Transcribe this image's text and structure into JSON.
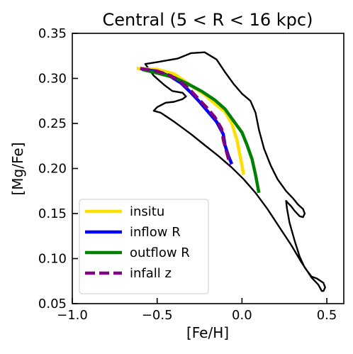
{
  "chart_data": {
    "type": "line",
    "title": "Central (5 < R < 16 kpc)",
    "xlabel": "[Fe/H]",
    "ylabel": "[Mg/Fe]",
    "xlim": [
      -1.0,
      0.6
    ],
    "ylim": [
      0.05,
      0.35
    ],
    "xticks": [
      -1.0,
      -0.5,
      0.0,
      0.5
    ],
    "xtick_labels": [
      "−1.0",
      "−0.5",
      "0.0",
      "0.5"
    ],
    "yticks": [
      0.05,
      0.1,
      0.15,
      0.2,
      0.25,
      0.3,
      0.35
    ],
    "ytick_labels": [
      "0.05",
      "0.10",
      "0.15",
      "0.20",
      "0.25",
      "0.30",
      "0.35"
    ],
    "grid": false,
    "legend_position": "lower-left",
    "contour": {
      "color": "#000000",
      "points": [
        [
          -0.57,
          0.316
        ],
        [
          -0.5,
          0.318
        ],
        [
          -0.38,
          0.322
        ],
        [
          -0.3,
          0.328
        ],
        [
          -0.22,
          0.329
        ],
        [
          -0.15,
          0.321
        ],
        [
          -0.1,
          0.307
        ],
        [
          -0.05,
          0.294
        ],
        [
          0.0,
          0.283
        ],
        [
          0.05,
          0.275
        ],
        [
          0.08,
          0.262
        ],
        [
          0.1,
          0.243
        ],
        [
          0.13,
          0.222
        ],
        [
          0.17,
          0.203
        ],
        [
          0.21,
          0.188
        ],
        [
          0.26,
          0.175
        ],
        [
          0.3,
          0.167
        ],
        [
          0.33,
          0.16
        ],
        [
          0.36,
          0.155
        ],
        [
          0.37,
          0.15
        ],
        [
          0.36,
          0.146
        ],
        [
          0.34,
          0.147
        ],
        [
          0.31,
          0.153
        ],
        [
          0.29,
          0.158
        ],
        [
          0.27,
          0.162
        ],
        [
          0.26,
          0.164
        ],
        [
          0.265,
          0.156
        ],
        [
          0.28,
          0.14
        ],
        [
          0.31,
          0.12
        ],
        [
          0.34,
          0.102
        ],
        [
          0.37,
          0.09
        ],
        [
          0.41,
          0.08
        ],
        [
          0.44,
          0.078
        ],
        [
          0.48,
          0.073
        ],
        [
          0.49,
          0.068
        ],
        [
          0.48,
          0.064
        ],
        [
          0.47,
          0.064
        ],
        [
          0.45,
          0.071
        ],
        [
          0.41,
          0.079
        ],
        [
          0.35,
          0.096
        ],
        [
          0.29,
          0.115
        ],
        [
          0.22,
          0.135
        ],
        [
          0.15,
          0.155
        ],
        [
          0.08,
          0.173
        ],
        [
          0.01,
          0.188
        ],
        [
          -0.06,
          0.201
        ],
        [
          -0.14,
          0.214
        ],
        [
          -0.22,
          0.226
        ],
        [
          -0.3,
          0.238
        ],
        [
          -0.4,
          0.252
        ],
        [
          -0.48,
          0.262
        ],
        [
          -0.52,
          0.264
        ],
        [
          -0.5,
          0.268
        ],
        [
          -0.45,
          0.273
        ],
        [
          -0.4,
          0.274
        ],
        [
          -0.35,
          0.277
        ],
        [
          -0.33,
          0.28
        ],
        [
          -0.35,
          0.284
        ],
        [
          -0.41,
          0.286
        ],
        [
          -0.46,
          0.293
        ],
        [
          -0.52,
          0.303
        ],
        [
          -0.57,
          0.316
        ]
      ]
    },
    "series": [
      {
        "name": "insitu",
        "color": "#ffdf00",
        "dash": "solid",
        "points": [
          [
            -0.62,
            0.311
          ],
          [
            -0.5,
            0.31
          ],
          [
            -0.4,
            0.305
          ],
          [
            -0.3,
            0.292
          ],
          [
            -0.22,
            0.282
          ],
          [
            -0.16,
            0.272
          ],
          [
            -0.1,
            0.263
          ],
          [
            -0.06,
            0.25
          ],
          [
            -0.03,
            0.232
          ],
          [
            -0.01,
            0.213
          ],
          [
            0.01,
            0.193
          ]
        ]
      },
      {
        "name": "inflow R",
        "color": "#0000ff",
        "dash": "solid",
        "points": [
          [
            -0.59,
            0.31
          ],
          [
            -0.5,
            0.308
          ],
          [
            -0.42,
            0.302
          ],
          [
            -0.36,
            0.295
          ],
          [
            -0.3,
            0.284
          ],
          [
            -0.25,
            0.274
          ],
          [
            -0.2,
            0.263
          ],
          [
            -0.15,
            0.252
          ],
          [
            -0.11,
            0.238
          ],
          [
            -0.1,
            0.226
          ],
          [
            -0.08,
            0.214
          ],
          [
            -0.06,
            0.205
          ]
        ]
      },
      {
        "name": "outflow R",
        "color": "#008000",
        "dash": "solid",
        "points": [
          [
            -0.59,
            0.31
          ],
          [
            -0.5,
            0.306
          ],
          [
            -0.4,
            0.301
          ],
          [
            -0.32,
            0.294
          ],
          [
            -0.24,
            0.286
          ],
          [
            -0.16,
            0.276
          ],
          [
            -0.1,
            0.266
          ],
          [
            -0.05,
            0.253
          ],
          [
            0.0,
            0.24
          ],
          [
            0.03,
            0.226
          ],
          [
            0.06,
            0.21
          ],
          [
            0.08,
            0.193
          ],
          [
            0.1,
            0.173
          ]
        ]
      },
      {
        "name": "infall z",
        "color": "#800080",
        "dash": "dashed",
        "points": [
          [
            -0.6,
            0.311
          ],
          [
            -0.5,
            0.308
          ],
          [
            -0.42,
            0.303
          ],
          [
            -0.36,
            0.296
          ],
          [
            -0.31,
            0.288
          ],
          [
            -0.26,
            0.278
          ],
          [
            -0.21,
            0.268
          ],
          [
            -0.16,
            0.257
          ],
          [
            -0.12,
            0.244
          ],
          [
            -0.11,
            0.232
          ],
          [
            -0.09,
            0.218
          ],
          [
            -0.07,
            0.204
          ]
        ]
      }
    ]
  }
}
